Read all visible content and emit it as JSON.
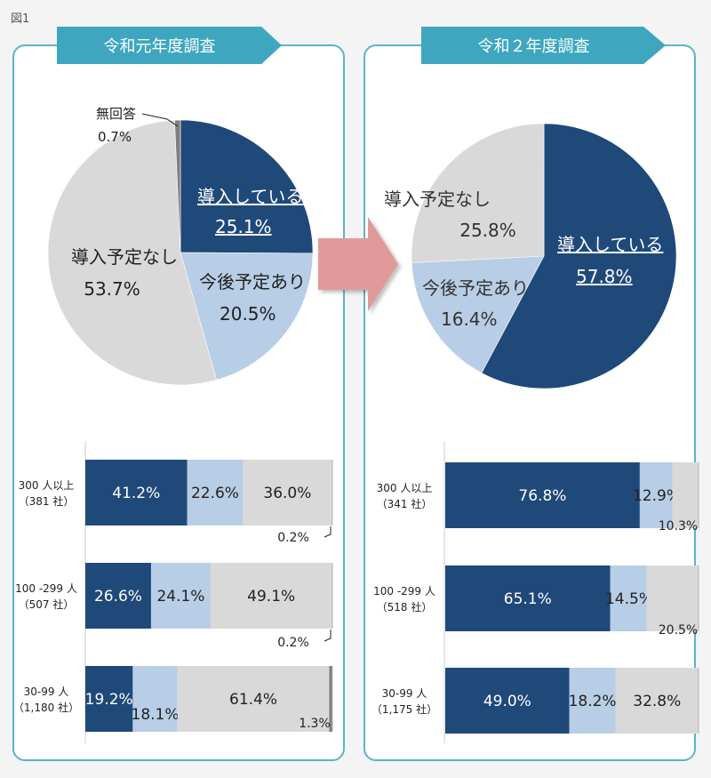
{
  "figure_label": "図1",
  "colors": {
    "introduced": "#1f4979",
    "planned": "#b8cde6",
    "not_planned": "#d9d9d9",
    "no_answer": "#7f7f7f",
    "accent_border": "#5bb4c9",
    "banner": "#3ea7bf",
    "arrow": "#e09a9a"
  },
  "chart_data": [
    {
      "id": "pie-2019",
      "type": "pie",
      "title": "令和元年度調査",
      "slices": [
        {
          "label": "導入している",
          "value": 25.1,
          "display": "25.1%",
          "color_key": "introduced"
        },
        {
          "label": "今後予定あり",
          "value": 20.5,
          "display": "20.5%",
          "color_key": "planned"
        },
        {
          "label": "導入予定なし",
          "value": 53.7,
          "display": "53.7%",
          "color_key": "not_planned"
        },
        {
          "label": "無回答",
          "value": 0.7,
          "display": "0.7%",
          "color_key": "no_answer"
        }
      ]
    },
    {
      "id": "pie-2020",
      "type": "pie",
      "title": "令和２年度調査",
      "slices": [
        {
          "label": "導入している",
          "value": 57.8,
          "display": "57.8%",
          "color_key": "introduced"
        },
        {
          "label": "今後予定あり",
          "value": 16.4,
          "display": "16.4%",
          "color_key": "planned"
        },
        {
          "label": "導入予定なし",
          "value": 25.8,
          "display": "25.8%",
          "color_key": "not_planned"
        }
      ]
    },
    {
      "id": "bars-2019",
      "type": "bar",
      "stacked": true,
      "orientation": "horizontal",
      "categories": [
        {
          "size": "300 人以上",
          "count": "（381 社）"
        },
        {
          "size": "100 -299 人",
          "count": "（507 社）"
        },
        {
          "size": "30-99 人",
          "count": "（1,180 社）"
        }
      ],
      "series": [
        {
          "color_key": "introduced",
          "values": [
            41.2,
            26.6,
            19.2
          ],
          "labels": [
            "41.2%",
            "26.6%",
            "19.2%"
          ]
        },
        {
          "color_key": "planned",
          "values": [
            22.6,
            24.1,
            18.1
          ],
          "labels": [
            "22.6%",
            "24.1%",
            "18.1%"
          ]
        },
        {
          "color_key": "not_planned",
          "values": [
            36.0,
            49.1,
            61.4
          ],
          "labels": [
            "36.0%",
            "49.1%",
            "61.4%"
          ]
        },
        {
          "color_key": "no_answer",
          "values": [
            0.2,
            0.2,
            1.3
          ],
          "labels": [
            "0.2%",
            "0.2%",
            "1.3%"
          ]
        }
      ]
    },
    {
      "id": "bars-2020",
      "type": "bar",
      "stacked": true,
      "orientation": "horizontal",
      "categories": [
        {
          "size": "300 人以上",
          "count": "（341 社）"
        },
        {
          "size": "100 -299 人",
          "count": "（518 社）"
        },
        {
          "size": "30-99 人",
          "count": "（1,175 社）"
        }
      ],
      "series": [
        {
          "color_key": "introduced",
          "values": [
            76.8,
            65.1,
            49.0
          ],
          "labels": [
            "76.8%",
            "65.1%",
            "49.0%"
          ]
        },
        {
          "color_key": "planned",
          "values": [
            12.9,
            14.5,
            18.2
          ],
          "labels": [
            "12.9%",
            "14.5%",
            "18.2%"
          ]
        },
        {
          "color_key": "not_planned",
          "values": [
            10.3,
            20.5,
            32.8
          ],
          "labels": [
            "10.3%",
            "20.5%",
            "32.8%"
          ]
        }
      ]
    }
  ]
}
